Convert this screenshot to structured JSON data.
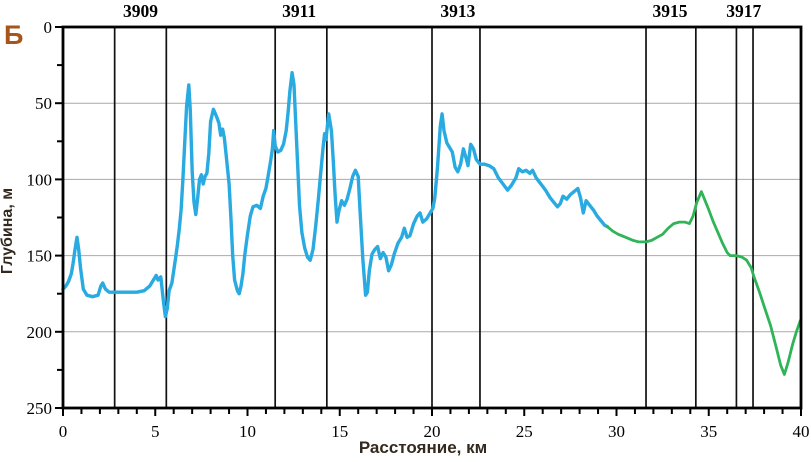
{
  "panel_label": "Б",
  "chart_data": {
    "type": "line",
    "title": "",
    "xlabel": "Расстояние, км",
    "ylabel": "Глубина, м",
    "xlim": [
      0,
      40
    ],
    "ylim": [
      0,
      250
    ],
    "y_inverted": true,
    "x_tick_step": 5,
    "x_minor_step": 1,
    "y_tick_step": 50,
    "y_minor_step": 25,
    "x_ticks": [
      0,
      5,
      10,
      15,
      20,
      25,
      30,
      35,
      40
    ],
    "y_ticks": [
      0,
      50,
      100,
      150,
      200,
      250
    ],
    "grid_y": [
      50,
      100,
      150,
      200
    ],
    "grid_color": "#a9a9a9",
    "stations": {
      "lines_km": [
        2.8,
        5.6,
        11.5,
        14.3,
        20.0,
        22.6,
        31.6,
        34.3,
        36.5,
        37.4
      ],
      "labels": [
        {
          "name": "3909",
          "km": 4.2
        },
        {
          "name": "3911",
          "km": 12.8
        },
        {
          "name": "3913",
          "km": 21.4
        },
        {
          "name": "3915",
          "km": 32.9
        },
        {
          "name": "3917",
          "km": 36.9
        }
      ]
    },
    "series": [
      {
        "name": "depth-profile-measured",
        "color": "#29aae1",
        "width": 3.4,
        "points": [
          [
            0.0,
            172
          ],
          [
            0.15,
            170
          ],
          [
            0.3,
            167
          ],
          [
            0.45,
            162
          ],
          [
            0.55,
            155
          ],
          [
            0.65,
            146
          ],
          [
            0.76,
            138
          ],
          [
            0.85,
            146
          ],
          [
            0.95,
            158
          ],
          [
            1.1,
            172
          ],
          [
            1.3,
            176
          ],
          [
            1.6,
            177
          ],
          [
            1.9,
            176
          ],
          [
            2.05,
            170
          ],
          [
            2.15,
            168
          ],
          [
            2.3,
            172
          ],
          [
            2.5,
            174
          ],
          [
            2.8,
            174
          ],
          [
            3.2,
            174
          ],
          [
            3.6,
            174
          ],
          [
            4.0,
            174
          ],
          [
            4.4,
            173
          ],
          [
            4.7,
            170
          ],
          [
            4.9,
            166
          ],
          [
            5.05,
            163
          ],
          [
            5.15,
            166
          ],
          [
            5.3,
            164
          ],
          [
            5.45,
            181
          ],
          [
            5.55,
            190
          ],
          [
            5.65,
            185
          ],
          [
            5.75,
            173
          ],
          [
            5.9,
            168
          ],
          [
            6.0,
            160
          ],
          [
            6.1,
            152
          ],
          [
            6.2,
            143
          ],
          [
            6.3,
            133
          ],
          [
            6.4,
            120
          ],
          [
            6.5,
            100
          ],
          [
            6.6,
            75
          ],
          [
            6.7,
            52
          ],
          [
            6.82,
            38
          ],
          [
            6.9,
            55
          ],
          [
            7.0,
            95
          ],
          [
            7.1,
            115
          ],
          [
            7.2,
            123
          ],
          [
            7.3,
            112
          ],
          [
            7.4,
            100
          ],
          [
            7.5,
            97
          ],
          [
            7.6,
            103
          ],
          [
            7.7,
            98
          ],
          [
            7.8,
            96
          ],
          [
            7.9,
            83
          ],
          [
            8.0,
            62
          ],
          [
            8.15,
            54
          ],
          [
            8.3,
            58
          ],
          [
            8.45,
            63
          ],
          [
            8.55,
            71
          ],
          [
            8.65,
            67
          ],
          [
            8.75,
            73
          ],
          [
            8.85,
            85
          ],
          [
            9.0,
            103
          ],
          [
            9.1,
            125
          ],
          [
            9.2,
            150
          ],
          [
            9.3,
            166
          ],
          [
            9.45,
            173
          ],
          [
            9.55,
            175
          ],
          [
            9.65,
            170
          ],
          [
            9.75,
            162
          ],
          [
            9.85,
            150
          ],
          [
            10.0,
            136
          ],
          [
            10.15,
            124
          ],
          [
            10.3,
            118
          ],
          [
            10.5,
            117
          ],
          [
            10.7,
            119
          ],
          [
            10.85,
            111
          ],
          [
            11.0,
            106
          ],
          [
            11.1,
            99
          ],
          [
            11.25,
            88
          ],
          [
            11.35,
            80
          ],
          [
            11.42,
            68
          ],
          [
            11.5,
            78
          ],
          [
            11.65,
            82
          ],
          [
            11.8,
            81
          ],
          [
            11.95,
            77
          ],
          [
            12.1,
            68
          ],
          [
            12.2,
            56
          ],
          [
            12.3,
            42
          ],
          [
            12.42,
            30
          ],
          [
            12.52,
            38
          ],
          [
            12.62,
            64
          ],
          [
            12.72,
            91
          ],
          [
            12.82,
            117
          ],
          [
            12.95,
            135
          ],
          [
            13.1,
            145
          ],
          [
            13.25,
            151
          ],
          [
            13.4,
            153
          ],
          [
            13.55,
            146
          ],
          [
            13.7,
            130
          ],
          [
            13.85,
            112
          ],
          [
            13.95,
            98
          ],
          [
            14.1,
            79
          ],
          [
            14.18,
            70
          ],
          [
            14.25,
            74
          ],
          [
            14.4,
            57
          ],
          [
            14.55,
            68
          ],
          [
            14.65,
            88
          ],
          [
            14.75,
            110
          ],
          [
            14.85,
            128
          ],
          [
            14.95,
            121
          ],
          [
            15.1,
            114
          ],
          [
            15.25,
            117
          ],
          [
            15.4,
            113
          ],
          [
            15.55,
            106
          ],
          [
            15.7,
            98
          ],
          [
            15.85,
            94
          ],
          [
            16.0,
            98
          ],
          [
            16.1,
            120
          ],
          [
            16.25,
            152
          ],
          [
            16.4,
            176
          ],
          [
            16.5,
            174
          ],
          [
            16.6,
            160
          ],
          [
            16.75,
            149
          ],
          [
            16.9,
            146
          ],
          [
            17.05,
            144
          ],
          [
            17.2,
            152
          ],
          [
            17.35,
            148
          ],
          [
            17.5,
            151
          ],
          [
            17.65,
            160
          ],
          [
            17.8,
            156
          ],
          [
            17.95,
            149
          ],
          [
            18.15,
            142
          ],
          [
            18.35,
            138
          ],
          [
            18.5,
            132
          ],
          [
            18.65,
            138
          ],
          [
            18.8,
            137
          ],
          [
            19.0,
            129
          ],
          [
            19.2,
            124
          ],
          [
            19.35,
            122
          ],
          [
            19.5,
            128
          ],
          [
            19.7,
            126
          ],
          [
            19.9,
            122
          ],
          [
            20.05,
            119
          ],
          [
            20.15,
            112
          ],
          [
            20.3,
            92
          ],
          [
            20.45,
            65
          ],
          [
            20.55,
            57
          ],
          [
            20.65,
            68
          ],
          [
            20.8,
            76
          ],
          [
            20.95,
            79
          ],
          [
            21.1,
            82
          ],
          [
            21.25,
            92
          ],
          [
            21.4,
            95
          ],
          [
            21.55,
            90
          ],
          [
            21.7,
            80
          ],
          [
            21.85,
            86
          ],
          [
            21.95,
            91
          ],
          [
            22.1,
            77
          ],
          [
            22.25,
            80
          ],
          [
            22.4,
            87
          ],
          [
            22.6,
            90
          ],
          [
            22.85,
            90
          ],
          [
            23.1,
            91
          ],
          [
            23.35,
            93
          ],
          [
            23.6,
            99
          ],
          [
            23.85,
            103
          ],
          [
            24.1,
            107
          ],
          [
            24.3,
            104
          ],
          [
            24.55,
            99
          ],
          [
            24.7,
            93
          ],
          [
            24.9,
            95
          ],
          [
            25.1,
            94
          ],
          [
            25.3,
            96
          ],
          [
            25.45,
            94
          ],
          [
            25.65,
            99
          ],
          [
            25.9,
            103
          ],
          [
            26.15,
            107
          ],
          [
            26.4,
            112
          ],
          [
            26.6,
            115
          ],
          [
            26.8,
            118
          ],
          [
            26.95,
            116
          ],
          [
            27.1,
            111
          ],
          [
            27.3,
            113
          ],
          [
            27.5,
            110
          ],
          [
            27.7,
            108
          ],
          [
            27.9,
            106
          ],
          [
            28.05,
            112
          ],
          [
            28.2,
            122
          ],
          [
            28.35,
            114
          ],
          [
            28.55,
            117
          ],
          [
            28.75,
            120
          ],
          [
            28.95,
            124
          ],
          [
            29.15,
            127
          ],
          [
            29.35,
            130
          ],
          [
            29.5,
            131
          ]
        ]
      },
      {
        "name": "depth-profile-continuation",
        "color": "#2fb457",
        "width": 2.8,
        "points": [
          [
            29.5,
            131
          ],
          [
            29.8,
            134
          ],
          [
            30.1,
            136
          ],
          [
            30.5,
            138
          ],
          [
            30.9,
            140
          ],
          [
            31.2,
            141
          ],
          [
            31.6,
            141
          ],
          [
            31.9,
            140
          ],
          [
            32.2,
            138
          ],
          [
            32.5,
            136
          ],
          [
            32.8,
            132
          ],
          [
            33.1,
            129
          ],
          [
            33.4,
            128
          ],
          [
            33.7,
            128
          ],
          [
            33.95,
            129
          ],
          [
            34.15,
            124
          ],
          [
            34.35,
            115
          ],
          [
            34.6,
            108
          ],
          [
            34.8,
            114
          ],
          [
            35.0,
            120
          ],
          [
            35.25,
            128
          ],
          [
            35.5,
            135
          ],
          [
            35.75,
            142
          ],
          [
            36.0,
            148
          ],
          [
            36.15,
            150
          ],
          [
            36.5,
            150
          ],
          [
            36.8,
            151
          ],
          [
            37.05,
            153
          ],
          [
            37.3,
            158
          ],
          [
            37.45,
            164
          ],
          [
            37.75,
            174
          ],
          [
            38.05,
            185
          ],
          [
            38.35,
            196
          ],
          [
            38.65,
            210
          ],
          [
            38.9,
            222
          ],
          [
            39.1,
            228
          ],
          [
            39.3,
            220
          ],
          [
            39.55,
            208
          ],
          [
            39.75,
            200
          ],
          [
            39.95,
            193
          ],
          [
            40.0,
            192
          ]
        ]
      }
    ]
  },
  "colors": {
    "axis": "#000000",
    "station_line": "#111111",
    "grid": "#a9a9a9",
    "panel_label": "#a8551b",
    "axis_title": "#33291e",
    "measured": "#29aae1",
    "continuation": "#2fb457"
  }
}
